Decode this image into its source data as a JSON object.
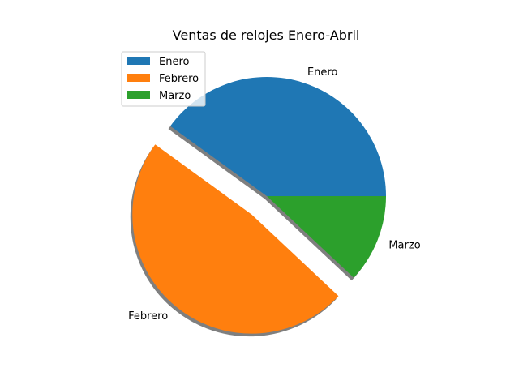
{
  "chart_data": {
    "type": "pie",
    "title": "Ventas de relojes Enero-Abril",
    "categories": [
      "Enero",
      "Febrero",
      "Marzo"
    ],
    "values": [
      40,
      48,
      12
    ],
    "colors": [
      "#1f77b4",
      "#ff7f0e",
      "#2ca02c"
    ],
    "explode": [
      0,
      0.2,
      0
    ],
    "start_angle_deg": 0,
    "shadow": true,
    "legend": {
      "position": "upper-left",
      "entries": [
        "Enero",
        "Febrero",
        "Marzo"
      ]
    }
  }
}
